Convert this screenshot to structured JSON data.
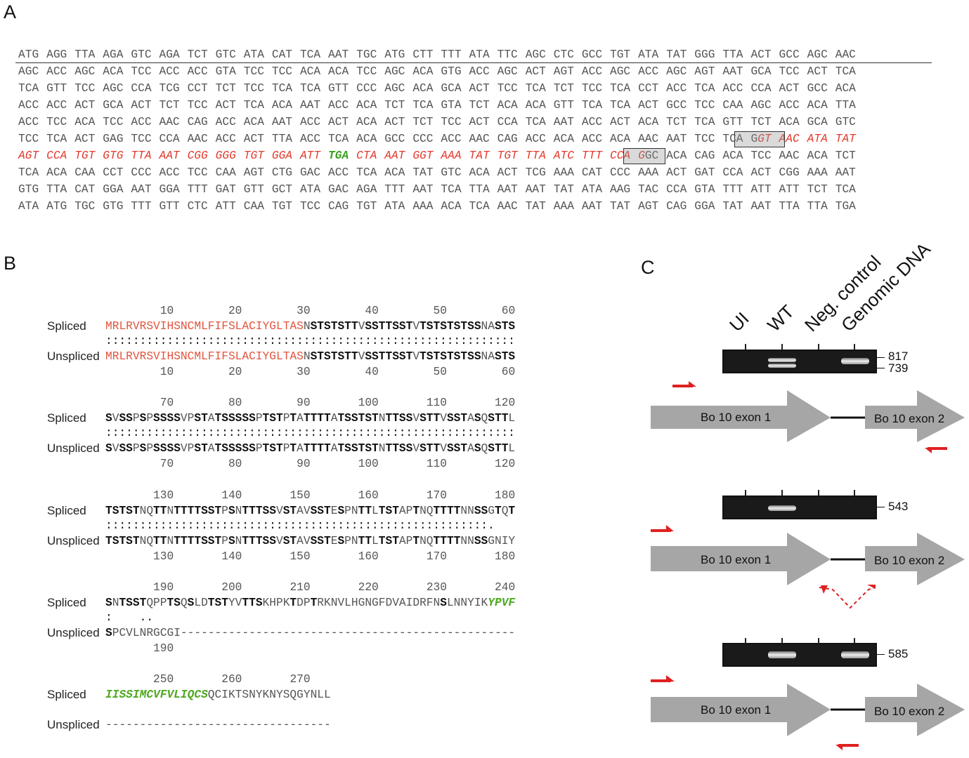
{
  "panel_letters": {
    "a": "A",
    "b": "B",
    "c": "C"
  },
  "panelA": {
    "rows": [
      [
        "ATG",
        "AGG",
        "TTA",
        "AGA",
        "GTC",
        "AGA",
        "TCT",
        "GTC",
        "ATA",
        "CAT",
        "TCA",
        "AAT",
        "TGC",
        "ATG",
        "CTT",
        "TTT",
        "ATA",
        "TTC",
        "AGC",
        "CTC",
        "GCC",
        "TGT",
        "ATA",
        "TAT",
        "GGG",
        "TTA",
        "ACT",
        "GCC",
        "AGC",
        "AAC"
      ],
      [
        "AGC",
        "ACC",
        "AGC",
        "ACA",
        "TCC",
        "ACC",
        "ACC",
        "GTA",
        "TCC",
        "TCC",
        "ACA",
        "ACA",
        "TCC",
        "AGC",
        "ACA",
        "GTG",
        "ACC",
        "AGC",
        "ACT",
        "AGT",
        "ACC",
        "AGC",
        "ACC",
        "AGC",
        "AGT",
        "AAT",
        "GCA",
        "TCC",
        "ACT",
        "TCA"
      ],
      [
        "TCA",
        "GTT",
        "TCC",
        "AGC",
        "CCA",
        "TCG",
        "CCT",
        "TCT",
        "TCC",
        "TCA",
        "TCA",
        "GTT",
        "CCC",
        "AGC",
        "ACA",
        "GCA",
        "ACT",
        "TCC",
        "TCA",
        "TCT",
        "TCC",
        "TCA",
        "CCT",
        "ACC",
        "TCA",
        "ACC",
        "CCA",
        "ACT",
        "GCC",
        "ACA"
      ],
      [
        "ACC",
        "ACC",
        "ACT",
        "GCA",
        "ACT",
        "TCT",
        "TCC",
        "ACT",
        "TCA",
        "ACA",
        "AAT",
        "ACC",
        "ACA",
        "TCT",
        "TCA",
        "GTA",
        "TCT",
        "ACA",
        "ACA",
        "GTT",
        "TCA",
        "TCA",
        "ACT",
        "GCC",
        "TCC",
        "CAA",
        "AGC",
        "ACC",
        "ACA",
        "TTA"
      ],
      [
        "ACC",
        "TCC",
        "ACA",
        "TCC",
        "ACC",
        "AAC",
        "CAG",
        "ACC",
        "ACA",
        "AAT",
        "ACC",
        "ACT",
        "ACA",
        "ACT",
        "TCT",
        "TCC",
        "ACT",
        "CCA",
        "TCA",
        "AAT",
        "ACC",
        "ACT",
        "ACA",
        "TCT",
        "TCA",
        "GTT",
        "TCT",
        "ACA",
        "GCA",
        "GTC"
      ],
      [
        "TCC",
        "TCA",
        "ACT",
        "GAG",
        "TCC",
        "CCA",
        "AAC",
        "ACC",
        "ACT",
        "TTA",
        "ACC",
        "TCA",
        "ACA",
        "GCC",
        "CCC",
        "ACC",
        "AAC",
        "CAG",
        "ACC",
        "ACA",
        "ACC",
        "ACA",
        "AAC",
        "AAT",
        "TCC",
        "TCA",
        "GGT",
        "AAC",
        "ATA",
        "TAT"
      ],
      [
        "AGT",
        "CCA",
        "TGT",
        "GTG",
        "TTA",
        "AAT",
        "CGG",
        "GGG",
        "TGT",
        "GGA",
        "ATT",
        "TGA",
        "CTA",
        "AAT",
        "GGT",
        "AAA",
        "TAT",
        "TGT",
        "TTA",
        "ATC",
        "TTT",
        "CCA",
        "GGC",
        "ACA",
        "CAG",
        "ACA",
        "TCC",
        "AAC",
        "ACA",
        "TCT"
      ],
      [
        "TCA",
        "ACA",
        "CAA",
        "CCT",
        "CCC",
        "ACC",
        "TCC",
        "CAA",
        "AGT",
        "CTG",
        "GAC",
        "ACC",
        "TCA",
        "ACA",
        "TAT",
        "GTC",
        "ACA",
        "ACT",
        "TCG",
        "AAA",
        "CAT",
        "CCC",
        "AAA",
        "ACT",
        "GAT",
        "CCA",
        "ACT",
        "CGG",
        "AAA",
        "AAT"
      ],
      [
        "GTG",
        "TTA",
        "CAT",
        "GGA",
        "AAT",
        "GGA",
        "TTT",
        "GAT",
        "GTT",
        "GCT",
        "ATA",
        "GAC",
        "AGA",
        "TTT",
        "AAT",
        "TCA",
        "TTA",
        "AAT",
        "AAT",
        "TAT",
        "ATA",
        "AAG",
        "TAC",
        "CCA",
        "GTA",
        "TTT",
        "ATT",
        "ATT",
        "TCT",
        "TCA"
      ],
      [
        "ATA",
        "ATG",
        "TGC",
        "GTG",
        "TTT",
        "GTT",
        "CTC",
        "ATT",
        "CAA",
        "TGT",
        "TCC",
        "CAG",
        "TGT",
        "ATA",
        "AAA",
        "ACA",
        "TCA",
        "AAC",
        "TAT",
        "AAA",
        "AAT",
        "TAT",
        "AGT",
        "CAG",
        "GGA",
        "TAT",
        "AAT",
        "TTA",
        "TTA",
        "TGA"
      ]
    ]
  },
  "panelB": {
    "label_spliced": "Spliced",
    "label_unspliced": "Unspliced",
    "blocks": [
      {
        "top_nums": [
          "10",
          "20",
          "30",
          "40",
          "50",
          "60"
        ],
        "spliced": "MRLRVRSVIHSNCMLFIFSLACIYGLTASNSTSTSTTVSSTTSSTVTSTSTSTSSNASTS",
        "match": "::::::::::::::::::::::::::::::::::::::::::::::::::::::::::::",
        "unspliced": "MRLRVRSVIHSNCMLFIFSLACIYGLTASNSTSTSTTVSSTTSSTVTSTSTSTSSNASTS",
        "bottom_nums": [
          "10",
          "20",
          "30",
          "40",
          "50",
          "60"
        ]
      },
      {
        "top_nums": [
          "70",
          "80",
          "90",
          "100",
          "110",
          "120"
        ],
        "spliced": "SVSSPSPSSSSVPSTATSSSSSPTSTPTATTTTATSSTSTNTTSSVSTTVSSTASQSTTL",
        "match": "::::::::::::::::::::::::::::::::::::::::::::::::::::::::::::",
        "unspliced": "SVSSPSPSSSSVPSTATSSSSSPTSTPTATTTTATSSTSTNTTSSVSTTVSSTASQSTTL",
        "bottom_nums": [
          "70",
          "80",
          "90",
          "100",
          "110",
          "120"
        ]
      },
      {
        "top_nums": [
          "130",
          "140",
          "150",
          "160",
          "170",
          "180"
        ],
        "spliced": "TSTSTNQTTNTTTTSSTPSNTTTSSVSTAVSSTESPNTTLTSTAPTNQTTTTNNSSGTQT",
        "match": "::::::::::::::::::::::::::::::::::::::::::::::::::::::::.",
        "unspliced": "TSTSTNQTTNTTTTSSTPSNTTTSSVSTAVSSTESPNTTLTSTAPTNQTTTTNNSSGNIY",
        "bottom_nums": [
          "130",
          "140",
          "150",
          "160",
          "170",
          "180"
        ]
      },
      {
        "top_nums": [
          "190",
          "200",
          "210",
          "220",
          "230",
          "240"
        ],
        "spliced": "SNTSSTQPPTSQSLDTSTYVTTSKHPKTDPTRKNVLHGNGFDVAIDRFNSLNNYIKYPVF",
        "match": ":    ..",
        "unspliced": "SPCVLNRGCGI-------------------------------------------------",
        "bottom_nums": [
          "190"
        ]
      },
      {
        "top_nums": [
          "250",
          "260",
          "270"
        ],
        "spliced": "IISSIMCVFVLIQCSQCIKTSNYKNYSQGYNLL",
        "unspliced": "---------------------------------"
      }
    ]
  },
  "panelC": {
    "lanes": [
      "UI",
      "WT",
      "Neg. control",
      "Genomic DNA"
    ],
    "gels": [
      {
        "sizes": [
          "817",
          "739"
        ]
      },
      {
        "sizes": [
          "543"
        ]
      },
      {
        "sizes": [
          "585"
        ]
      }
    ],
    "exon1": "Bo 10  exon 1",
    "exon2": "Bo 10  exon 2",
    "colors": {
      "arrow": "#a6a6a6",
      "primer": "#e02020",
      "gel": "#1a1a1a"
    }
  }
}
